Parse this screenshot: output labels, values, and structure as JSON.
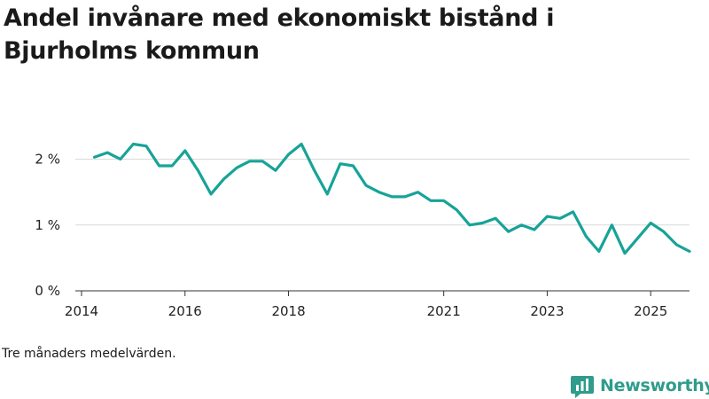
{
  "header": {
    "title": "Andel invånare med ekonomiskt bistånd i Bjurholms kommun"
  },
  "note": "Tre månaders medelvärden.",
  "brand": {
    "name": "Newsworthy",
    "color": "#2f9c8c"
  },
  "chart_data": {
    "type": "line",
    "title": "Andel invånare med ekonomiskt bistånd i Bjurholms kommun",
    "xlabel": "",
    "ylabel": "",
    "y_ticks": [
      {
        "value": 0,
        "label": "0 %"
      },
      {
        "value": 1,
        "label": "1 %"
      },
      {
        "value": 2,
        "label": "2 %"
      }
    ],
    "x_ticks": [
      {
        "value": 2014.0,
        "label": "2014"
      },
      {
        "value": 2016.0,
        "label": "2016"
      },
      {
        "value": 2018.0,
        "label": "2018"
      },
      {
        "value": 2021.0,
        "label": "2021"
      },
      {
        "value": 2023.0,
        "label": "2023"
      },
      {
        "value": 2025.0,
        "label": "2025"
      }
    ],
    "xlim": [
      2013.88,
      2025.75
    ],
    "ylim": [
      0,
      2.6
    ],
    "grid": "horizontal",
    "line_color": "#17a398",
    "series": [
      {
        "x": [
          2014.25,
          2014.5,
          2014.75,
          2015.0,
          2015.25,
          2015.5,
          2015.75,
          2016.0,
          2016.25,
          2016.5,
          2016.75,
          2017.0,
          2017.25,
          2017.5,
          2017.75,
          2018.0,
          2018.25,
          2018.5,
          2018.75,
          2019.0,
          2019.25,
          2019.5,
          2019.75,
          2020.0,
          2020.25,
          2020.5,
          2020.75,
          2021.0,
          2021.25,
          2021.5,
          2021.75,
          2022.0,
          2022.25,
          2022.5,
          2022.75,
          2023.0,
          2023.25,
          2023.5,
          2023.75,
          2024.0,
          2024.25,
          2024.5,
          2024.75,
          2025.0,
          2025.25,
          2025.5,
          2025.75
        ],
        "values": [
          2.03,
          2.1,
          2.0,
          2.23,
          2.2,
          1.9,
          1.9,
          2.13,
          1.83,
          1.47,
          1.7,
          1.87,
          1.97,
          1.97,
          1.83,
          2.07,
          2.23,
          1.83,
          1.47,
          1.93,
          1.9,
          1.6,
          1.5,
          1.43,
          1.43,
          1.5,
          1.37,
          1.37,
          1.23,
          1.0,
          1.03,
          1.1,
          0.9,
          1.0,
          0.93,
          1.13,
          1.1,
          1.2,
          0.83,
          0.6,
          1.0,
          0.57,
          0.8,
          1.03,
          0.9,
          0.7,
          0.6
        ]
      }
    ]
  }
}
